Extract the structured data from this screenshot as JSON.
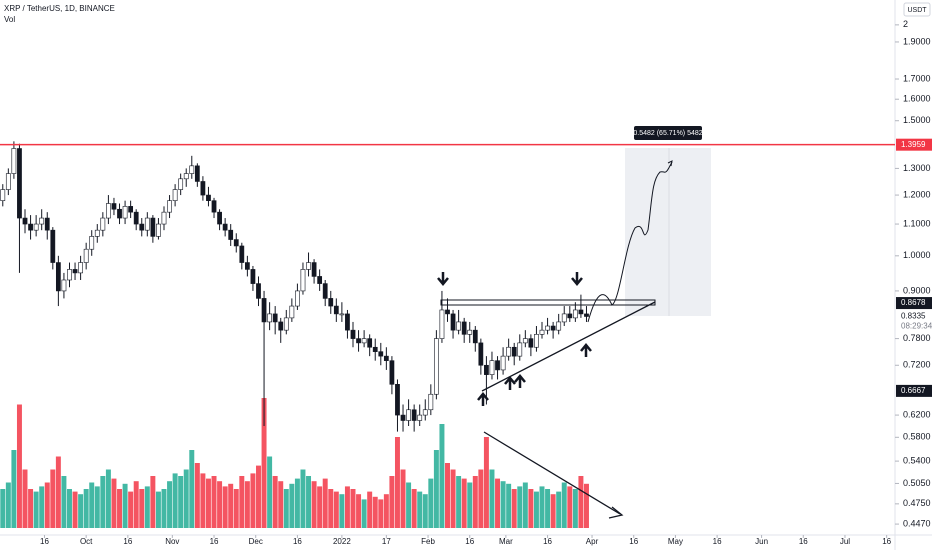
{
  "header": {
    "symbol": "XRP / TetherUS, 1D, BINANCE",
    "volume_label": "Vol",
    "currency": "USDT"
  },
  "chart_data": {
    "type": "candlestick",
    "log_scale": true,
    "up_fill": "#ffffff",
    "down_fill": "#131722",
    "wick_color": "#131722",
    "volume_up_color": "#22ab94",
    "volume_down_color": "#f23645",
    "x": [
      0,
      2,
      4,
      6,
      8,
      10,
      12,
      14,
      16,
      18,
      20,
      22,
      24,
      26,
      28,
      30,
      32,
      34,
      36,
      38,
      40,
      42,
      44,
      46,
      48,
      50,
      52,
      54,
      56,
      58,
      60,
      62,
      64,
      66,
      68,
      70,
      72,
      74,
      76,
      78,
      80,
      82,
      84,
      86,
      88,
      90,
      92,
      94,
      96,
      98,
      100,
      102,
      104,
      106,
      108,
      110,
      112,
      114,
      116,
      118,
      120,
      122,
      124,
      126,
      128,
      130,
      132,
      134,
      136,
      138,
      140,
      142,
      144,
      146,
      148,
      150,
      152,
      154,
      156,
      158,
      160,
      162,
      164,
      166,
      168,
      170,
      172,
      174,
      176,
      178,
      180,
      182,
      184,
      186,
      188,
      190,
      192,
      194,
      196,
      198,
      200,
      202,
      204,
      206,
      208,
      210
    ],
    "ohlc": [
      [
        1.18,
        1.24,
        1.16,
        1.22
      ],
      [
        1.22,
        1.3,
        1.2,
        1.28
      ],
      [
        1.28,
        1.41,
        1.26,
        1.38
      ],
      [
        1.38,
        1.4,
        0.95,
        1.12
      ],
      [
        1.12,
        1.15,
        1.07,
        1.1
      ],
      [
        1.1,
        1.13,
        1.05,
        1.08
      ],
      [
        1.08,
        1.13,
        1.06,
        1.1
      ],
      [
        1.1,
        1.15,
        1.08,
        1.12
      ],
      [
        1.12,
        1.14,
        1.05,
        1.08
      ],
      [
        1.08,
        1.09,
        0.96,
        0.98
      ],
      [
        0.98,
        1,
        0.86,
        0.9
      ],
      [
        0.9,
        0.95,
        0.88,
        0.93
      ],
      [
        0.93,
        0.98,
        0.91,
        0.96
      ],
      [
        0.96,
        0.98,
        0.93,
        0.95
      ],
      [
        0.95,
        1,
        0.93,
        0.98
      ],
      [
        0.98,
        1.04,
        0.96,
        1.02
      ],
      [
        1.02,
        1.08,
        1,
        1.06
      ],
      [
        1.06,
        1.1,
        1.04,
        1.08
      ],
      [
        1.08,
        1.14,
        1.06,
        1.12
      ],
      [
        1.12,
        1.2,
        1.1,
        1.17
      ],
      [
        1.17,
        1.19,
        1.13,
        1.15
      ],
      [
        1.15,
        1.17,
        1.1,
        1.12
      ],
      [
        1.12,
        1.18,
        1.1,
        1.16
      ],
      [
        1.16,
        1.18,
        1.12,
        1.14
      ],
      [
        1.14,
        1.15,
        1.08,
        1.1
      ],
      [
        1.1,
        1.12,
        1.06,
        1.08
      ],
      [
        1.08,
        1.14,
        1.06,
        1.12
      ],
      [
        1.12,
        1.13,
        1.04,
        1.06
      ],
      [
        1.06,
        1.12,
        1.05,
        1.1
      ],
      [
        1.1,
        1.16,
        1.08,
        1.14
      ],
      [
        1.14,
        1.2,
        1.12,
        1.18
      ],
      [
        1.18,
        1.24,
        1.16,
        1.22
      ],
      [
        1.22,
        1.28,
        1.2,
        1.26
      ],
      [
        1.26,
        1.3,
        1.23,
        1.28
      ],
      [
        1.28,
        1.35,
        1.26,
        1.31
      ],
      [
        1.31,
        1.32,
        1.23,
        1.25
      ],
      [
        1.25,
        1.27,
        1.18,
        1.2
      ],
      [
        1.2,
        1.23,
        1.16,
        1.18
      ],
      [
        1.18,
        1.19,
        1.12,
        1.14
      ],
      [
        1.14,
        1.15,
        1.08,
        1.1
      ],
      [
        1.1,
        1.12,
        1.06,
        1.08
      ],
      [
        1.08,
        1.1,
        1.03,
        1.05
      ],
      [
        1.05,
        1.07,
        1.01,
        1.03
      ],
      [
        1.03,
        1.04,
        0.96,
        0.98
      ],
      [
        0.98,
        1,
        0.94,
        0.96
      ],
      [
        0.96,
        0.97,
        0.9,
        0.92
      ],
      [
        0.92,
        0.94,
        0.86,
        0.88
      ],
      [
        0.88,
        0.9,
        0.6,
        0.82
      ],
      [
        0.82,
        0.87,
        0.8,
        0.84
      ],
      [
        0.84,
        0.86,
        0.79,
        0.82
      ],
      [
        0.82,
        0.83,
        0.77,
        0.8
      ],
      [
        0.8,
        0.85,
        0.79,
        0.83
      ],
      [
        0.83,
        0.88,
        0.82,
        0.86
      ],
      [
        0.86,
        0.92,
        0.85,
        0.9
      ],
      [
        0.9,
        0.98,
        0.89,
        0.96
      ],
      [
        0.96,
        1.01,
        0.94,
        0.98
      ],
      [
        0.98,
        0.99,
        0.92,
        0.94
      ],
      [
        0.94,
        0.96,
        0.9,
        0.92
      ],
      [
        0.92,
        0.93,
        0.86,
        0.88
      ],
      [
        0.88,
        0.9,
        0.84,
        0.86
      ],
      [
        0.86,
        0.88,
        0.82,
        0.84
      ],
      [
        0.84,
        0.87,
        0.82,
        0.84
      ],
      [
        0.84,
        0.85,
        0.78,
        0.8
      ],
      [
        0.8,
        0.82,
        0.76,
        0.78
      ],
      [
        0.78,
        0.8,
        0.75,
        0.77
      ],
      [
        0.77,
        0.8,
        0.76,
        0.78
      ],
      [
        0.78,
        0.79,
        0.74,
        0.76
      ],
      [
        0.76,
        0.78,
        0.73,
        0.75
      ],
      [
        0.75,
        0.77,
        0.72,
        0.74
      ],
      [
        0.74,
        0.76,
        0.71,
        0.73
      ],
      [
        0.73,
        0.74,
        0.66,
        0.68
      ],
      [
        0.68,
        0.69,
        0.59,
        0.62
      ],
      [
        0.62,
        0.64,
        0.59,
        0.61
      ],
      [
        0.61,
        0.65,
        0.6,
        0.63
      ],
      [
        0.63,
        0.64,
        0.59,
        0.61
      ],
      [
        0.61,
        0.64,
        0.6,
        0.62
      ],
      [
        0.62,
        0.65,
        0.61,
        0.63
      ],
      [
        0.63,
        0.68,
        0.62,
        0.66
      ],
      [
        0.66,
        0.8,
        0.65,
        0.78
      ],
      [
        0.78,
        0.9,
        0.77,
        0.85
      ],
      [
        0.85,
        0.88,
        0.82,
        0.84
      ],
      [
        0.84,
        0.85,
        0.78,
        0.8
      ],
      [
        0.8,
        0.85,
        0.79,
        0.82
      ],
      [
        0.82,
        0.83,
        0.77,
        0.79
      ],
      [
        0.79,
        0.82,
        0.77,
        0.8
      ],
      [
        0.8,
        0.81,
        0.75,
        0.77
      ],
      [
        0.77,
        0.78,
        0.7,
        0.72
      ],
      [
        0.72,
        0.74,
        0.64,
        0.7
      ],
      [
        0.7,
        0.75,
        0.69,
        0.73
      ],
      [
        0.73,
        0.74,
        0.69,
        0.71
      ],
      [
        0.71,
        0.76,
        0.7,
        0.74
      ],
      [
        0.74,
        0.78,
        0.73,
        0.76
      ],
      [
        0.76,
        0.77,
        0.72,
        0.74
      ],
      [
        0.74,
        0.79,
        0.73,
        0.77
      ],
      [
        0.77,
        0.8,
        0.76,
        0.78
      ],
      [
        0.78,
        0.79,
        0.74,
        0.76
      ],
      [
        0.76,
        0.81,
        0.75,
        0.79
      ],
      [
        0.79,
        0.82,
        0.78,
        0.8
      ],
      [
        0.8,
        0.83,
        0.79,
        0.81
      ],
      [
        0.81,
        0.82,
        0.78,
        0.8
      ],
      [
        0.8,
        0.84,
        0.79,
        0.82
      ],
      [
        0.82,
        0.86,
        0.81,
        0.84
      ],
      [
        0.84,
        0.86,
        0.82,
        0.83
      ],
      [
        0.83,
        0.87,
        0.82,
        0.85
      ],
      [
        0.85,
        0.89,
        0.83,
        0.84
      ],
      [
        0.84,
        0.86,
        0.82,
        0.8335
      ]
    ],
    "volume": [
      30,
      35,
      60,
      95,
      45,
      30,
      28,
      32,
      35,
      45,
      55,
      40,
      30,
      28,
      26,
      30,
      35,
      32,
      40,
      45,
      38,
      30,
      34,
      28,
      36,
      30,
      32,
      40,
      28,
      30,
      36,
      42,
      40,
      45,
      60,
      50,
      42,
      38,
      40,
      36,
      32,
      34,
      30,
      40,
      36,
      42,
      48,
      100,
      55,
      40,
      36,
      30,
      34,
      38,
      45,
      40,
      36,
      32,
      38,
      30,
      28,
      26,
      32,
      30,
      26,
      22,
      28,
      24,
      22,
      26,
      40,
      70,
      45,
      35,
      30,
      28,
      26,
      38,
      60,
      80,
      50,
      45,
      40,
      38,
      35,
      40,
      45,
      70,
      45,
      38,
      36,
      34,
      30,
      32,
      35,
      30,
      28,
      32,
      30,
      26,
      28,
      35,
      32,
      30,
      40,
      34
    ],
    "ylim": [
      0.4326,
      2.155
    ],
    "yticks": [
      {
        "value": 0.447,
        "label": "0.4470"
      },
      {
        "value": 0.475,
        "label": "0.4750"
      },
      {
        "value": 0.505,
        "label": "0.5050"
      },
      {
        "value": 0.54,
        "label": "0.5400"
      },
      {
        "value": 0.58,
        "label": "0.5800"
      },
      {
        "value": 0.62,
        "label": "0.6200"
      },
      {
        "value": 0.72,
        "label": "0.7200"
      },
      {
        "value": 0.78,
        "label": "0.7800"
      },
      {
        "value": 0.9,
        "label": "0.9000"
      },
      {
        "value": 1,
        "label": "1.0000"
      },
      {
        "value": 1.1,
        "label": "1.1000"
      },
      {
        "value": 1.2,
        "label": "1.2000"
      },
      {
        "value": 1.3,
        "label": "1.3000"
      },
      {
        "value": 1.5,
        "label": "1.5000"
      },
      {
        "value": 1.6,
        "label": "1.6000"
      },
      {
        "value": 1.7,
        "label": "1.7000"
      },
      {
        "value": 1.9,
        "label": "1.9000"
      },
      2
    ],
    "xlim": [
      -1,
      321
    ],
    "xticks": [
      {
        "value": 15,
        "label": "16"
      },
      {
        "value": 30,
        "label": "Oct"
      },
      {
        "value": 45,
        "label": "16"
      },
      {
        "value": 61,
        "label": "Nov"
      },
      {
        "value": 76,
        "label": "16"
      },
      {
        "value": 91,
        "label": "Dec"
      },
      {
        "value": 106,
        "label": "16"
      },
      {
        "value": 122,
        "label": "2022"
      },
      {
        "value": 138,
        "label": "17"
      },
      {
        "value": 153,
        "label": "Feb"
      },
      {
        "value": 168,
        "label": "16"
      },
      {
        "value": 181,
        "label": "Mar"
      },
      {
        "value": 196,
        "label": "16"
      },
      {
        "value": 212,
        "label": "Apr"
      },
      {
        "value": 227,
        "label": "16"
      },
      {
        "value": 242,
        "label": "May"
      },
      {
        "value": 257,
        "label": "16"
      },
      {
        "value": 273,
        "label": "Jun"
      },
      {
        "value": 288,
        "label": "16"
      },
      {
        "value": 303,
        "label": "Jul"
      },
      {
        "value": 318,
        "label": "16"
      }
    ],
    "price_labels": [
      {
        "value": 1.3959,
        "label": "1.3959",
        "color": "#f23645",
        "line": true
      },
      {
        "value": 0.8678,
        "label": "0.8678",
        "color": "#131722"
      },
      {
        "value": 0.6667,
        "label": "0.6667",
        "color": "#131722"
      },
      {
        "value": 0.8335,
        "label": "0.8335"
      }
    ],
    "countdown": "08:29:34",
    "measure_label": "0.5482 (65.71%) 5482"
  }
}
